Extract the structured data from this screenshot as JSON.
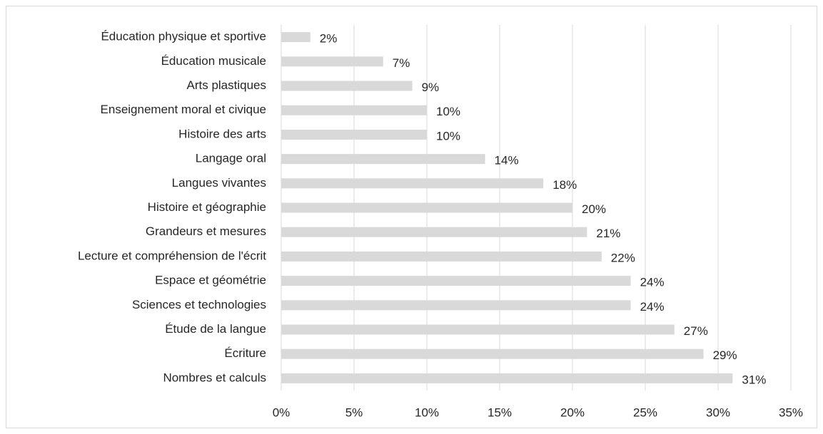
{
  "chart_data": {
    "type": "barh",
    "categories": [
      "Éducation physique et sportive",
      "Éducation musicale",
      "Arts plastiques",
      "Enseignement moral et civique",
      "Histoire des arts",
      "Langage oral",
      "Langues vivantes",
      "Histoire et géographie",
      "Grandeurs et mesures",
      "Lecture et compréhension de l'écrit",
      "Espace et géométrie",
      "Sciences et technologies",
      "Étude de la langue",
      "Écriture",
      "Nombres et calculs"
    ],
    "values": [
      2,
      7,
      9,
      10,
      10,
      14,
      18,
      20,
      21,
      22,
      24,
      24,
      27,
      29,
      31
    ],
    "value_labels": [
      "2%",
      "7%",
      "9%",
      "10%",
      "10%",
      "14%",
      "18%",
      "20%",
      "21%",
      "22%",
      "24%",
      "24%",
      "27%",
      "29%",
      "31%"
    ],
    "color": "#d9d9d9",
    "xlim": [
      0,
      35
    ],
    "xticks": [
      {
        "value": 0,
        "label": "0%"
      },
      {
        "value": 5,
        "label": "5%"
      },
      {
        "value": 10,
        "label": "10%"
      },
      {
        "value": 15,
        "label": "15%"
      },
      {
        "value": 20,
        "label": "20%"
      },
      {
        "value": 25,
        "label": "25%"
      },
      {
        "value": 30,
        "label": "30%"
      },
      {
        "value": 35,
        "label": "35%"
      }
    ],
    "grid": true
  }
}
